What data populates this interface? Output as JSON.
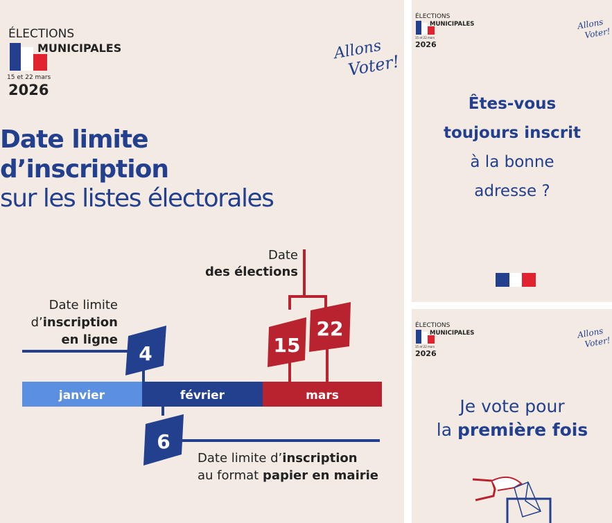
{
  "logo": {
    "line1": "ÉLECTIONS",
    "line2": "MUNICIPALES",
    "dates": "15 et 22 mars",
    "year": "2026",
    "slogan1": "Allons",
    "slogan2": "Voter!"
  },
  "main": {
    "title1": "Date limite",
    "title2": "d’inscription",
    "title3": "sur les listes électorales",
    "elections_label1": "Date",
    "elections_label2": "des élections",
    "online_label1": "Date limite",
    "online_label2a": "d’",
    "online_label2b": "inscription",
    "online_label3": "en ligne",
    "day_online": "4",
    "day_paper": "6",
    "day_elec1": "15",
    "day_elec2": "22",
    "months": [
      "janvier",
      "février",
      "mars"
    ],
    "paper_label1a": "Date limite d’",
    "paper_label1b": "inscription",
    "paper_label2a": "au format ",
    "paper_label2b": "papier en mairie"
  },
  "card2": {
    "line1": "Êtes-vous",
    "line2": "toujours inscrit",
    "line3": "à la bonne",
    "line4": "adresse ?"
  },
  "card3": {
    "line1": "Je vote pour",
    "line2a": "la ",
    "line2b": "première fois"
  },
  "colors": {
    "background": "#f3ebe3",
    "blue": "#23408e",
    "light_blue": "#5b8fe0",
    "red": "#b8232f"
  }
}
